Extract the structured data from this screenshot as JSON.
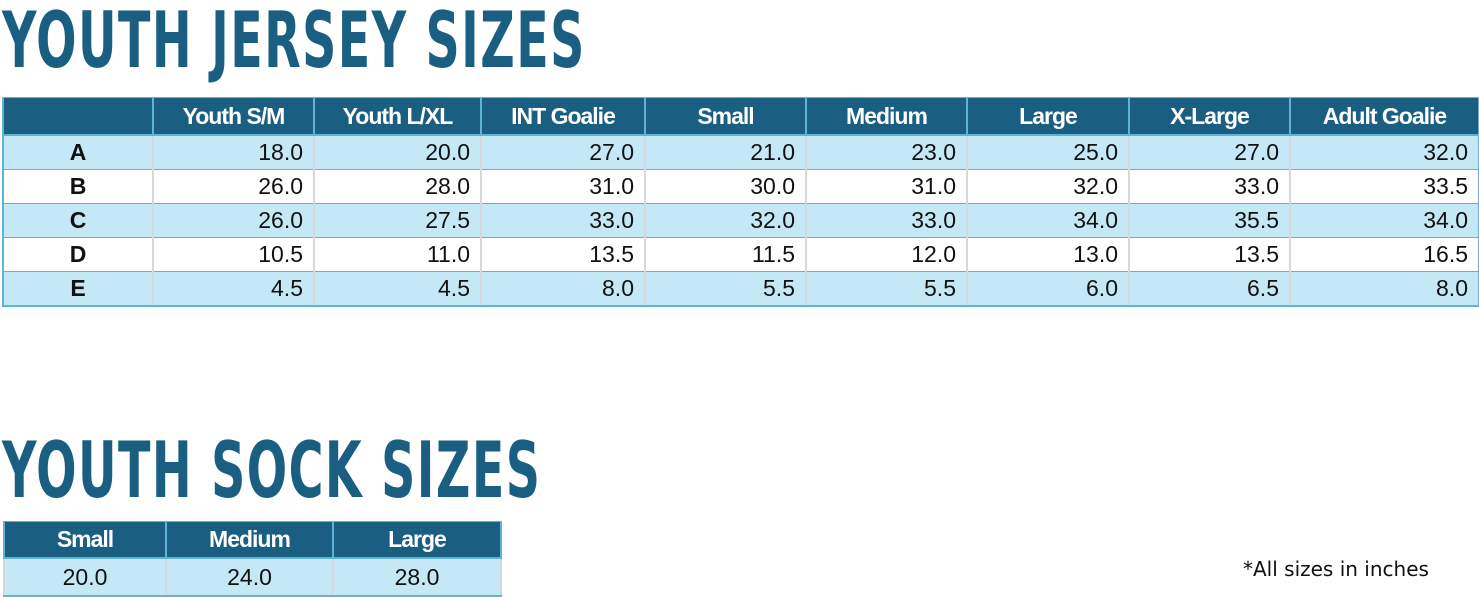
{
  "jersey": {
    "title": "YOUTH JERSEY SIZES",
    "columns": [
      "",
      "Youth S/M",
      "Youth L/XL",
      "INT Goalie",
      "Small",
      "Medium",
      "Large",
      "X-Large",
      "Adult Goalie"
    ],
    "rows": [
      {
        "label": "A",
        "values": [
          "18.0",
          "20.0",
          "27.0",
          "21.0",
          "23.0",
          "25.0",
          "27.0",
          "32.0"
        ]
      },
      {
        "label": "B",
        "values": [
          "26.0",
          "28.0",
          "31.0",
          "30.0",
          "31.0",
          "32.0",
          "33.0",
          "33.5"
        ]
      },
      {
        "label": "C",
        "values": [
          "26.0",
          "27.5",
          "33.0",
          "32.0",
          "33.0",
          "34.0",
          "35.5",
          "34.0"
        ]
      },
      {
        "label": "D",
        "values": [
          "10.5",
          "11.0",
          "13.5",
          "11.5",
          "12.0",
          "13.0",
          "13.5",
          "16.5"
        ]
      },
      {
        "label": "E",
        "values": [
          "4.5",
          "4.5",
          "8.0",
          "5.5",
          "5.5",
          "6.0",
          "6.5",
          "8.0"
        ]
      }
    ]
  },
  "sock": {
    "title": "YOUTH SOCK SIZES",
    "columns": [
      "Small",
      "Medium",
      "Large"
    ],
    "values": [
      "20.0",
      "24.0",
      "28.0"
    ]
  },
  "footnote": "*All sizes in inches",
  "colors": {
    "title": "#1a5f82",
    "header_bg": "#1a5f82",
    "row_light": "#c5e8f7",
    "border": "#5fb3d6"
  }
}
